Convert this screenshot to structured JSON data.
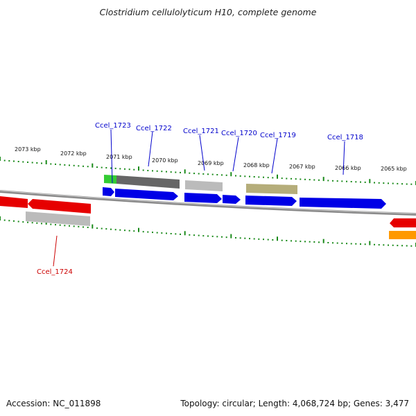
{
  "title": "Clostridium cellulolyticum H10, complete genome",
  "footer": {
    "accession": "Accession: NC_011898",
    "summary": "Topology: circular; Length: 4,068,724 bp; Genes: 3,477"
  },
  "colors": {
    "cds_plus": "#0000e6",
    "cds_minus": "#e60000",
    "label_plus": "#0000cc",
    "label_minus": "#cc0000",
    "backbone": "#777777",
    "tick": "#1a8a1a",
    "gray_dark": "#666666",
    "gray_light": "#bbbbbb",
    "olive": "#b5ad7a",
    "green": "#33cc33",
    "orange": "#ff9900"
  },
  "scale_labels": [
    "2073 kbp",
    "2072 kbp",
    "2071 kbp",
    "2070 kbp",
    "2069 kbp",
    "2068 kbp",
    "2067 kbp",
    "2066 kbp",
    "2065 kbp"
  ],
  "gene_labels": [
    "Ccel_1723",
    "Ccel_1722",
    "Ccel_1721",
    "Ccel_1720",
    "Ccel_1719",
    "Ccel_1718",
    "Ccel_1724"
  ]
}
